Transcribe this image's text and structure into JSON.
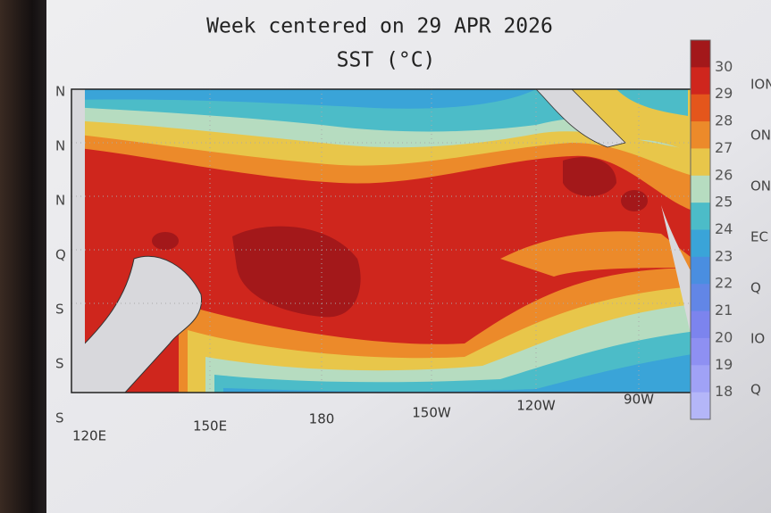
{
  "header": {
    "title": "Week centered on 29 APR 2026",
    "subtitle": "SST (°C)"
  },
  "map": {
    "lon_labels": [
      "120E",
      "150E",
      "180",
      "150W",
      "120W",
      "90W"
    ],
    "lat_labels": [
      "N",
      "N",
      "N",
      "Q",
      "S",
      "S",
      "S"
    ]
  },
  "colorbar": {
    "labels": [
      30,
      29,
      28,
      27,
      26,
      25,
      24,
      23,
      22,
      21,
      20,
      19,
      18
    ],
    "colors": [
      "#a3181a",
      "#cf261d",
      "#e4561c",
      "#ec8a2a",
      "#e8c64a",
      "#b6dcc0",
      "#4cbcc8",
      "#3aa4d8",
      "#4a8ee0",
      "#6286e6",
      "#7c84ee",
      "#8e90f2",
      "#a0a2f6",
      "#b4b6f8"
    ]
  },
  "side_labels": [
    "ION",
    "ON",
    "ON",
    "EC",
    "Q",
    "IO",
    "Q"
  ]
}
